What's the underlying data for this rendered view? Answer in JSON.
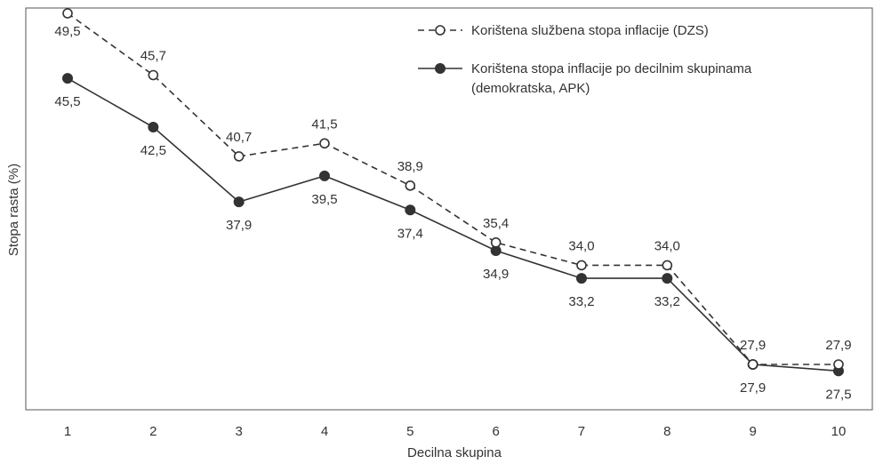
{
  "chart_data": {
    "type": "line",
    "x": [
      "1",
      "2",
      "3",
      "4",
      "5",
      "6",
      "7",
      "8",
      "9",
      "10"
    ],
    "xlabel": "Decilna skupina",
    "ylabel": "Stopa rasta (%)",
    "ylim": [
      25,
      50
    ],
    "grid": false,
    "legend_position": "top-right",
    "series": [
      {
        "name": "Korištena službena stopa inflacije (DZS)",
        "style": "dashed",
        "marker": "hollow-circle",
        "color": "#333333",
        "x": [
          1,
          2,
          3,
          4,
          5,
          6,
          7,
          8,
          9,
          10
        ],
        "values": [
          49.5,
          45.7,
          40.7,
          41.5,
          38.9,
          35.4,
          34.0,
          34.0,
          27.9,
          27.9
        ],
        "labels": [
          "49,5",
          "45,7",
          "40,7",
          "41,5",
          "38,9",
          "35,4",
          "34,0",
          "34,0",
          "27,9",
          "27,9"
        ]
      },
      {
        "name": "Korištena stopa inflacije po decilnim skupinama",
        "name_line2": "(demokratska, APK)",
        "style": "solid",
        "marker": "filled-circle",
        "color": "#333333",
        "x": [
          1,
          2,
          3,
          4,
          5,
          6,
          7,
          8,
          9,
          10
        ],
        "values": [
          45.5,
          42.5,
          37.9,
          39.5,
          37.4,
          34.9,
          33.2,
          33.2,
          27.9,
          27.5
        ],
        "labels": [
          "45,5",
          "42,5",
          "37,9",
          "39,5",
          "37,4",
          "34,9",
          "33,2",
          "33,2",
          "27,9",
          "27,5"
        ]
      }
    ]
  }
}
